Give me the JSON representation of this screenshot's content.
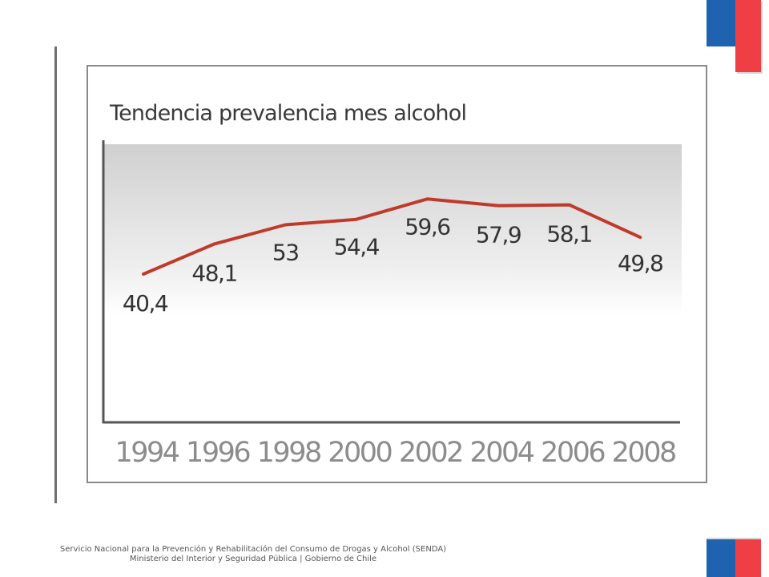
{
  "chart_data": {
    "type": "line",
    "title": "Tendencia prevalencia mes alcohol",
    "categories": [
      "1994",
      "1996",
      "1998",
      "2000",
      "2002",
      "2004",
      "2006",
      "2008"
    ],
    "series": [
      {
        "values": [
          40.4,
          48.1,
          53,
          54.4,
          59.6,
          57.9,
          58.1,
          49.8
        ]
      }
    ],
    "data_labels": [
      "40,4",
      "48,1",
      "53",
      "54,4",
      "59,6",
      "57,9",
      "58,1",
      "49,8"
    ],
    "xlabel": "",
    "ylabel": "",
    "grid": false,
    "colors": {
      "line": "#c0392b",
      "axis": "#555555",
      "tick": "#8c8c8c",
      "label": "#333333"
    }
  },
  "footer": {
    "line1": "Servicio Nacional para la Prevención y Rehabilitación del Consumo de Drogas y Alcohol (SENDA)",
    "line2": "Ministerio del Interior y Seguridad Pública | Gobierno de Chile"
  }
}
